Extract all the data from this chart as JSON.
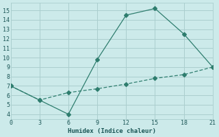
{
  "x": [
    0,
    3,
    6,
    9,
    12,
    15,
    18,
    21
  ],
  "y_upper": [
    7.0,
    5.5,
    4.0,
    9.8,
    14.5,
    15.2,
    12.5,
    9.0
  ],
  "y_lower": [
    7.0,
    5.5,
    6.3,
    6.7,
    7.2,
    7.8,
    8.2,
    9.0
  ],
  "line_color": "#2e7d6e",
  "bg_color": "#cceaea",
  "grid_color": "#aacece",
  "xlabel": "Humidex (Indice chaleur)",
  "xlim": [
    0,
    21
  ],
  "ylim": [
    3.5,
    15.8
  ],
  "xticks": [
    0,
    3,
    6,
    9,
    12,
    15,
    18,
    21
  ],
  "yticks": [
    4,
    5,
    6,
    7,
    8,
    9,
    10,
    11,
    12,
    13,
    14,
    15
  ],
  "font_color": "#1a5555",
  "markersize": 3
}
